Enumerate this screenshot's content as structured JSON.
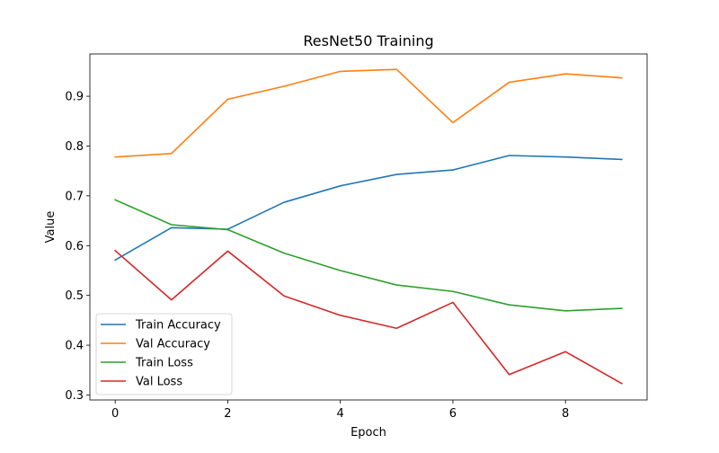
{
  "chart_data": {
    "type": "line",
    "title": "ResNet50 Training",
    "xlabel": "Epoch",
    "ylabel": "Value",
    "x": [
      0,
      1,
      2,
      3,
      4,
      5,
      6,
      7,
      8,
      9
    ],
    "xlim": [
      -0.45,
      9.45
    ],
    "ylim": [
      0.29,
      0.985
    ],
    "xticks": [
      0,
      2,
      4,
      6,
      8
    ],
    "yticks": [
      0.3,
      0.4,
      0.5,
      0.6,
      0.7,
      0.8,
      0.9
    ],
    "grid": false,
    "legend_position": "lower-left",
    "series": [
      {
        "name": "Train Accuracy",
        "color": "#1f77b4",
        "values": [
          0.571,
          0.636,
          0.633,
          0.687,
          0.72,
          0.743,
          0.752,
          0.781,
          0.778,
          0.773
        ]
      },
      {
        "name": "Val Accuracy",
        "color": "#ff7f0e",
        "values": [
          0.778,
          0.785,
          0.894,
          0.92,
          0.95,
          0.954,
          0.847,
          0.928,
          0.945,
          0.937
        ]
      },
      {
        "name": "Train Loss",
        "color": "#2ca02c",
        "values": [
          0.692,
          0.642,
          0.632,
          0.585,
          0.55,
          0.521,
          0.508,
          0.481,
          0.469,
          0.474
        ]
      },
      {
        "name": "Val Loss",
        "color": "#d62728",
        "values": [
          0.59,
          0.491,
          0.589,
          0.499,
          0.46,
          0.434,
          0.486,
          0.341,
          0.387,
          0.323
        ]
      }
    ]
  }
}
